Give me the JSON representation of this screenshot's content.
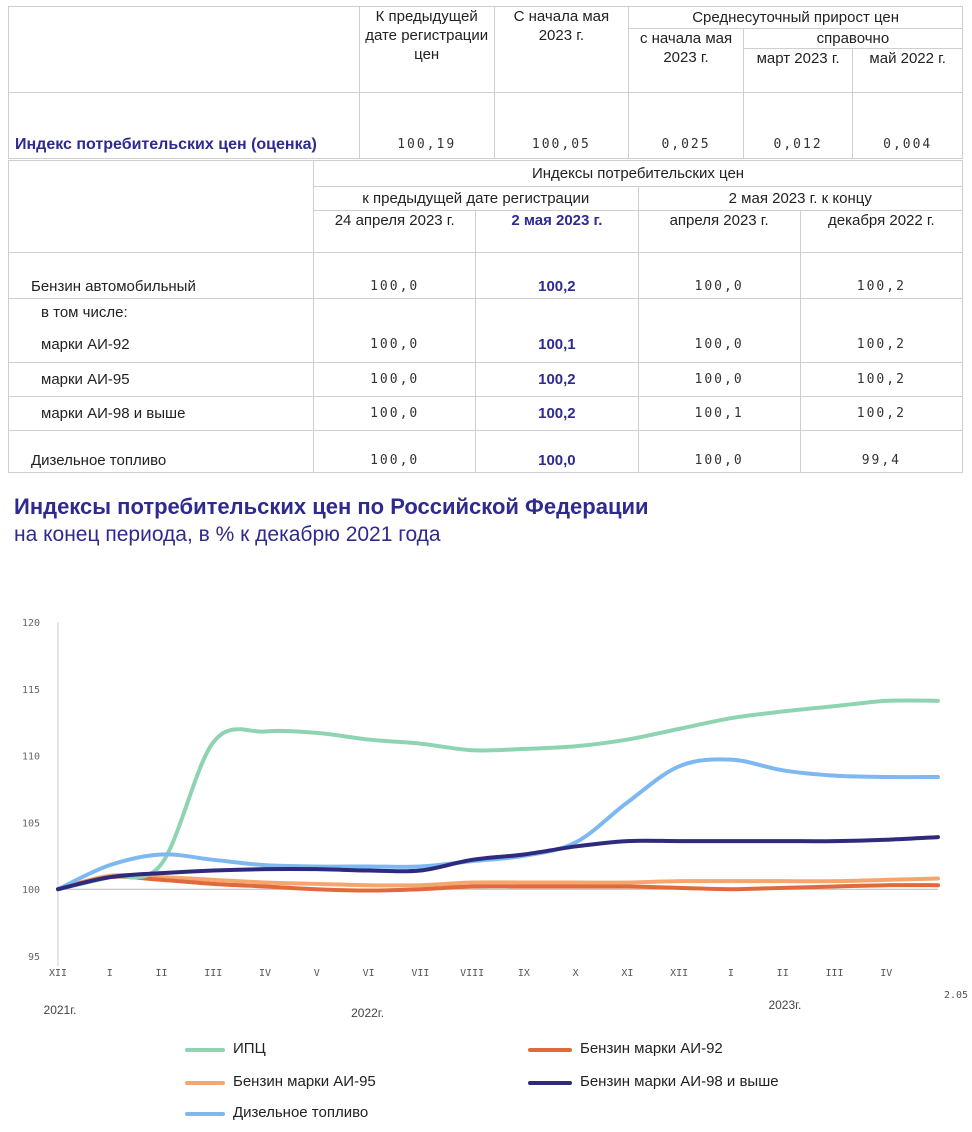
{
  "table1": {
    "headers": {
      "col1": "К предыдущей дате регистрации цен",
      "col2": "С начала мая 2023 г.",
      "group": "Среднесуточный прирост цен",
      "sub1": "с начала мая 2023 г.",
      "sub_group": "справочно",
      "sub2": "март 2023 г.",
      "sub3": "май 2022 г."
    },
    "row": {
      "label": "Индекс потребительских цен (оценка)",
      "values": [
        "100,19",
        "100,05",
        "0,025",
        "0,012",
        "0,004"
      ]
    }
  },
  "table2": {
    "headers": {
      "group": "Индексы потребительских цен",
      "sub_a": "к предыдущей дате регистрации",
      "sub_b": "2 мая 2023 г. к концу",
      "c1": "24 апреля 2023 г.",
      "c2": "2 мая 2023 г.",
      "c3": "апреля 2023 г.",
      "c4": "декабря 2022 г."
    },
    "rows": [
      {
        "label": "Бензин автомобильный",
        "values": [
          "100,0",
          "100,2",
          "100,0",
          "100,2"
        ]
      },
      {
        "label": "в том числе:",
        "values": [
          "",
          "",
          "",
          ""
        ]
      },
      {
        "label": "марки АИ-92",
        "values": [
          "100,0",
          "100,1",
          "100,0",
          "100,2"
        ]
      },
      {
        "label": "марки АИ-95",
        "values": [
          "100,0",
          "100,2",
          "100,0",
          "100,2"
        ]
      },
      {
        "label": "марки АИ-98 и выше",
        "values": [
          "100,0",
          "100,2",
          "100,1",
          "100,2"
        ]
      },
      {
        "label": "Дизельное топливо",
        "values": [
          "100,0",
          "100,0",
          "100,0",
          "99,4"
        ]
      }
    ]
  },
  "chart_title": "Индексы потребительских цен по Российской Федерации",
  "chart_subtitle": "на конец периода, в % к декабрю 2021 года",
  "chart_data": {
    "type": "line",
    "ylim": [
      95,
      120
    ],
    "y_ticks": [
      "95",
      "100",
      "105",
      "110",
      "115",
      "120"
    ],
    "x": [
      "XII",
      "I",
      "II",
      "III",
      "IV",
      "V",
      "VI",
      "VII",
      "VIII",
      "IX",
      "X",
      "XI",
      "XII",
      "I",
      "II",
      "III",
      "IV",
      "2.05"
    ],
    "year_labels": [
      "2021г.",
      "2022г.",
      "2023г."
    ],
    "series": [
      {
        "name": "ИПЦ",
        "color": "#8fd4b0",
        "values": [
          100.0,
          100.9,
          101.9,
          111.0,
          111.8,
          111.7,
          111.2,
          110.9,
          110.4,
          110.5,
          110.7,
          111.2,
          112.0,
          112.8,
          113.3,
          113.7,
          114.1,
          114.1
        ]
      },
      {
        "name": "Бензин марки АИ-92",
        "color": "#e06a3c",
        "values": [
          100.0,
          100.9,
          100.7,
          100.4,
          100.2,
          100.0,
          99.9,
          100.0,
          100.2,
          100.2,
          100.2,
          100.2,
          100.1,
          100.0,
          100.1,
          100.2,
          100.3,
          100.3
        ]
      },
      {
        "name": "Бензин марки АИ-95",
        "color": "#f5a66e",
        "values": [
          100.0,
          101.0,
          100.9,
          100.7,
          100.5,
          100.4,
          100.3,
          100.3,
          100.5,
          100.5,
          100.5,
          100.5,
          100.6,
          100.6,
          100.6,
          100.6,
          100.7,
          100.8
        ]
      },
      {
        "name": "Бензин марки АИ-98 и выше",
        "color": "#2e2a7e",
        "values": [
          100.0,
          100.9,
          101.2,
          101.4,
          101.5,
          101.5,
          101.4,
          101.4,
          102.2,
          102.6,
          103.2,
          103.6,
          103.6,
          103.6,
          103.6,
          103.6,
          103.7,
          103.9
        ]
      },
      {
        "name": "Дизельное топливо",
        "color": "#7db9f0",
        "values": [
          100.0,
          101.8,
          102.6,
          102.2,
          101.8,
          101.7,
          101.7,
          101.7,
          102.1,
          102.5,
          103.5,
          106.5,
          109.2,
          109.7,
          108.9,
          108.5,
          108.4,
          108.4
        ]
      }
    ]
  },
  "legend": [
    {
      "name": "ИПЦ",
      "color": "#8fd4b0"
    },
    {
      "name": "Бензин марки АИ-92",
      "color": "#e06a3c"
    },
    {
      "name": "Бензин марки АИ-95",
      "color": "#f5a66e"
    },
    {
      "name": "Бензин марки АИ-98 и выше",
      "color": "#2e2a7e"
    },
    {
      "name": "Дизельное топливо",
      "color": "#7db9f0"
    }
  ]
}
